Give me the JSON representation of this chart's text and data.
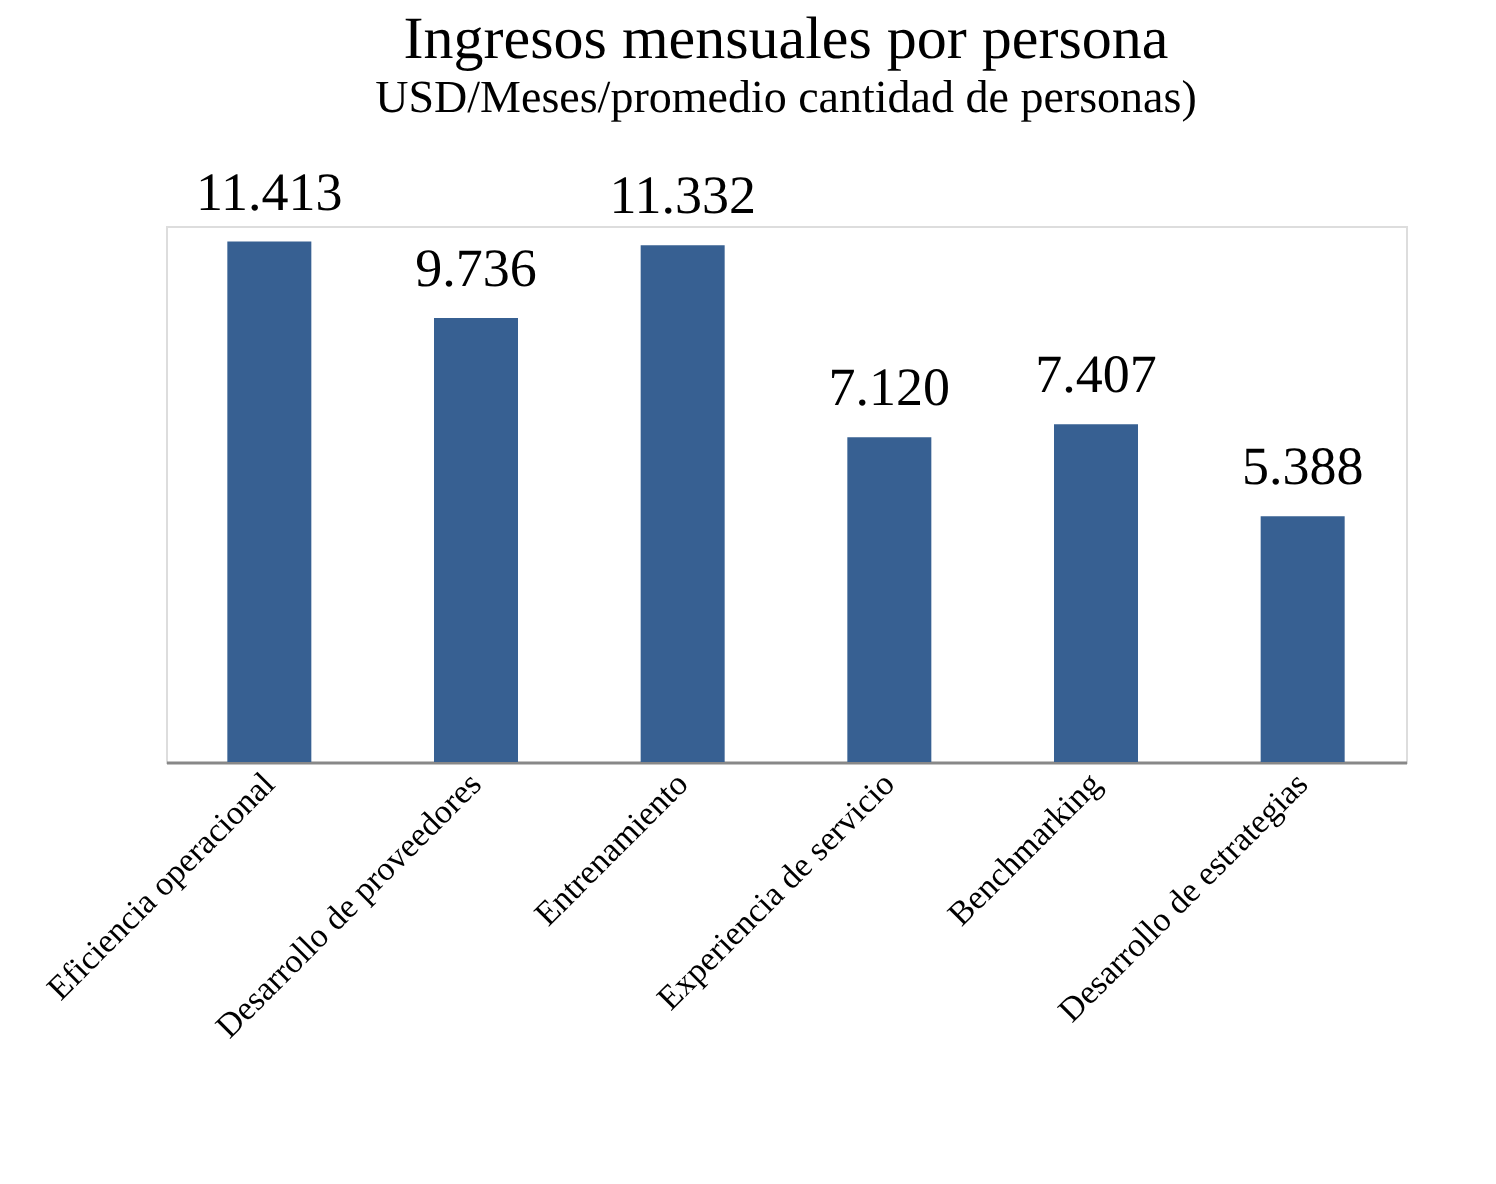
{
  "chart_data": {
    "type": "bar",
    "title": "Ingresos mensuales por persona",
    "subtitle": "USD/Meses/promedio cantidad de personas)",
    "categories": [
      "Eficiencia operacional",
      "Desarrollo de proveedores",
      "Entrenamiento",
      "Experiencia de servicio",
      "Benchmarking",
      "Desarrollo de estrategias"
    ],
    "values": [
      11413,
      9736,
      11332,
      7120,
      7407,
      5388
    ],
    "value_labels": [
      "11.413",
      "9.736",
      "11.332",
      "7.120",
      "7.407",
      "5.388"
    ],
    "color": "#376092"
  }
}
